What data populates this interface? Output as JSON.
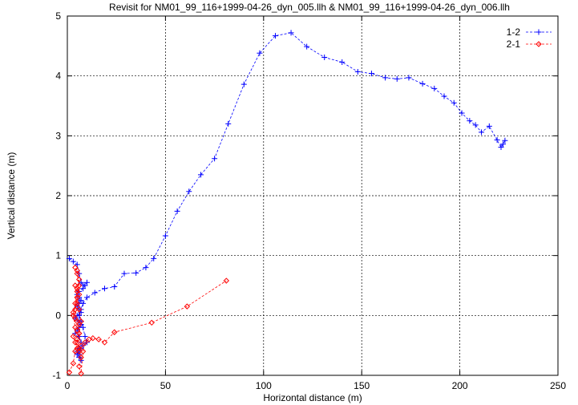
{
  "chart_data": {
    "type": "scatter",
    "title": "Revisit for NM01_99_116+1999-04-26_dyn_005.llh & NM01_99_116+1999-04-26_dyn_006.llh",
    "xlabel": "Horizontal distance (m)",
    "ylabel": "Vertical distance (m)",
    "xlim": [
      0,
      250
    ],
    "ylim": [
      -1,
      5
    ],
    "xticks": [
      "0",
      "50",
      "100",
      "150",
      "200",
      "250"
    ],
    "yticks": [
      "-1",
      "0",
      "1",
      "2",
      "3",
      "4",
      "5"
    ],
    "grid": true,
    "legend_position": "top-right",
    "series": [
      {
        "name": "1-2",
        "color": "#0000ff",
        "marker": "plus",
        "line": "dashed",
        "points": [
          [
            1,
            0.95
          ],
          [
            3,
            0.9
          ],
          [
            5,
            0.85
          ],
          [
            6,
            0.7
          ],
          [
            7,
            0.55
          ],
          [
            8,
            0.5
          ],
          [
            10,
            0.55
          ],
          [
            9,
            0.5
          ],
          [
            8,
            0.45
          ],
          [
            6,
            0.4
          ],
          [
            5,
            0.35
          ],
          [
            6,
            0.3
          ],
          [
            7,
            0.25
          ],
          [
            6,
            0.2
          ],
          [
            5,
            0.15
          ],
          [
            6,
            0.1
          ],
          [
            7,
            0.05
          ],
          [
            5,
            0.0
          ],
          [
            4,
            -0.05
          ],
          [
            6,
            -0.1
          ],
          [
            7,
            -0.15
          ],
          [
            6,
            -0.2
          ],
          [
            5,
            -0.25
          ],
          [
            4,
            -0.3
          ],
          [
            6,
            -0.35
          ],
          [
            7,
            -0.45
          ],
          [
            6,
            -0.55
          ],
          [
            5,
            -0.6
          ],
          [
            6,
            -0.65
          ],
          [
            7,
            -0.75
          ],
          [
            6,
            -0.7
          ],
          [
            5,
            -0.65
          ],
          [
            6,
            -0.6
          ],
          [
            7,
            -0.55
          ],
          [
            8,
            -0.5
          ],
          [
            10,
            -0.45
          ],
          [
            9,
            -0.35
          ],
          [
            8,
            -0.2
          ],
          [
            7,
            -0.1
          ],
          [
            6,
            0.0
          ],
          [
            7,
            0.1
          ],
          [
            8,
            0.2
          ],
          [
            10,
            0.3
          ],
          [
            14,
            0.38
          ],
          [
            19,
            0.45
          ],
          [
            24,
            0.48
          ],
          [
            29,
            0.7
          ],
          [
            35,
            0.71
          ],
          [
            40,
            0.8
          ],
          [
            44,
            0.95
          ],
          [
            50,
            1.33
          ],
          [
            56,
            1.74
          ],
          [
            62,
            2.07
          ],
          [
            68,
            2.35
          ],
          [
            75,
            2.62
          ],
          [
            82,
            3.2
          ],
          [
            90,
            3.86
          ],
          [
            98,
            4.38
          ],
          [
            106,
            4.67
          ],
          [
            114,
            4.72
          ],
          [
            122,
            4.49
          ],
          [
            131,
            4.31
          ],
          [
            140,
            4.23
          ],
          [
            148,
            4.07
          ],
          [
            155,
            4.04
          ],
          [
            162,
            3.97
          ],
          [
            168,
            3.95
          ],
          [
            174,
            3.97
          ],
          [
            181,
            3.87
          ],
          [
            187,
            3.79
          ],
          [
            192,
            3.66
          ],
          [
            197,
            3.55
          ],
          [
            201,
            3.38
          ],
          [
            205,
            3.25
          ],
          [
            208,
            3.18
          ],
          [
            211,
            3.06
          ],
          [
            215,
            3.16
          ],
          [
            219,
            2.93
          ],
          [
            221,
            2.81
          ],
          [
            222,
            2.86
          ],
          [
            223,
            2.92
          ]
        ]
      },
      {
        "name": "2-1",
        "color": "#ff0000",
        "marker": "diamond",
        "line": "dashed",
        "points": [
          [
            1,
            -0.95
          ],
          [
            3,
            -0.8
          ],
          [
            4,
            -0.6
          ],
          [
            5,
            -0.4
          ],
          [
            4,
            -0.2
          ],
          [
            3,
            0.0
          ],
          [
            4,
            0.2
          ],
          [
            5,
            0.4
          ],
          [
            6,
            0.6
          ],
          [
            5,
            0.75
          ],
          [
            4,
            0.8
          ],
          [
            5,
            0.7
          ],
          [
            6,
            0.5
          ],
          [
            5,
            0.3
          ],
          [
            4,
            0.1
          ],
          [
            5,
            -0.1
          ],
          [
            6,
            -0.3
          ],
          [
            7,
            -0.5
          ],
          [
            6,
            -0.6
          ],
          [
            5,
            -0.55
          ],
          [
            4,
            -0.45
          ],
          [
            3,
            -0.35
          ],
          [
            5,
            -0.25
          ],
          [
            6,
            -0.15
          ],
          [
            4,
            -0.05
          ],
          [
            3,
            0.05
          ],
          [
            5,
            0.2
          ],
          [
            6,
            0.35
          ],
          [
            5,
            0.45
          ],
          [
            4,
            0.5
          ],
          [
            5,
            0.3
          ],
          [
            6,
            0.1
          ],
          [
            7,
            -0.1
          ],
          [
            6,
            -0.3
          ],
          [
            5,
            -0.45
          ],
          [
            6,
            -0.55
          ],
          [
            7,
            -0.7
          ],
          [
            6,
            -0.85
          ],
          [
            7,
            -0.97
          ],
          [
            8,
            -0.6
          ],
          [
            9,
            -0.45
          ],
          [
            11,
            -0.4
          ],
          [
            13,
            -0.38
          ],
          [
            16,
            -0.4
          ],
          [
            19,
            -0.45
          ],
          [
            24,
            -0.28
          ],
          [
            43,
            -0.12
          ],
          [
            61,
            0.15
          ],
          [
            81,
            0.58
          ]
        ]
      }
    ]
  }
}
